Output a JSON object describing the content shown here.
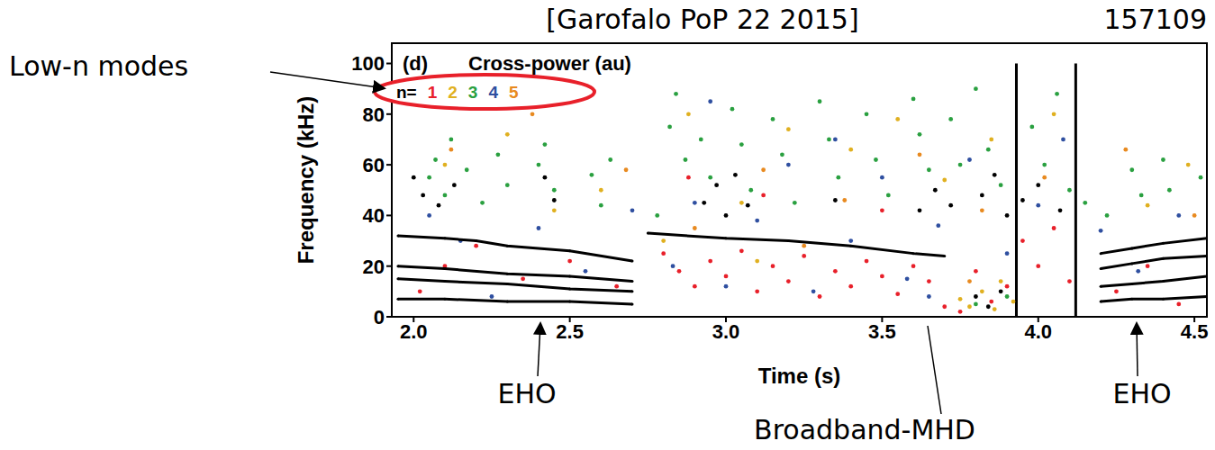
{
  "chart_data": {
    "type": "scatter",
    "title": "Cross-power (au)",
    "panel": "(d)",
    "x_label": "Time (s)",
    "y_label": "Frequency (kHz)",
    "xlim": [
      1.93,
      4.54
    ],
    "xticks": [
      {
        "value": 2,
        "label": "2.0"
      },
      2.5,
      {
        "value": 3,
        "label": "3.0"
      },
      3.5,
      {
        "value": 4,
        "label": "4.0"
      },
      4.5
    ],
    "ylim": [
      0,
      108
    ],
    "yticks": [
      0,
      20,
      40,
      60,
      80,
      100
    ],
    "legend": "top-left",
    "legend_title": "n=",
    "series": [
      {
        "name": "1",
        "color": "#e8202a",
        "values": [
          [
            2.02,
            10
          ],
          [
            2.1,
            20
          ],
          [
            2.2,
            28
          ],
          [
            2.35,
            15
          ],
          [
            2.5,
            22
          ],
          [
            2.65,
            12
          ],
          [
            2.8,
            25
          ],
          [
            2.85,
            18
          ],
          [
            2.9,
            12
          ],
          [
            2.95,
            22
          ],
          [
            3.0,
            16
          ],
          [
            3.05,
            26
          ],
          [
            3.1,
            10
          ],
          [
            3.15,
            20
          ],
          [
            3.2,
            14
          ],
          [
            3.25,
            24
          ],
          [
            3.3,
            8
          ],
          [
            3.35,
            18
          ],
          [
            3.4,
            12
          ],
          [
            3.45,
            22
          ],
          [
            3.5,
            16
          ],
          [
            3.55,
            9
          ],
          [
            3.6,
            20
          ],
          [
            3.65,
            14
          ],
          [
            3.7,
            4
          ],
          [
            3.75,
            2
          ],
          [
            3.8,
            18
          ],
          [
            3.85,
            6
          ],
          [
            3.9,
            12
          ],
          [
            3.95,
            30
          ],
          [
            4.0,
            20
          ],
          [
            4.05,
            35
          ],
          [
            4.1,
            14
          ],
          [
            4.25,
            10
          ],
          [
            4.35,
            20
          ],
          [
            4.45,
            5
          ],
          [
            2.88,
            55
          ],
          [
            3.12,
            48
          ],
          [
            3.5,
            42
          ]
        ]
      },
      {
        "name": "2",
        "color": "#e0b020",
        "values": [
          [
            2.1,
            60
          ],
          [
            2.3,
            72
          ],
          [
            2.45,
            42
          ],
          [
            2.6,
            50
          ],
          [
            2.88,
            80
          ],
          [
            3.05,
            45
          ],
          [
            3.2,
            74
          ],
          [
            3.4,
            66
          ],
          [
            3.55,
            78
          ],
          [
            3.7,
            54
          ],
          [
            3.85,
            70
          ],
          [
            4.05,
            80
          ],
          [
            4.35,
            44
          ],
          [
            4.48,
            60
          ],
          [
            3.78,
            4
          ],
          [
            3.82,
            10
          ],
          [
            3.86,
            3
          ],
          [
            3.88,
            14
          ],
          [
            3.75,
            7
          ],
          [
            3.92,
            6
          ],
          [
            2.8,
            30
          ],
          [
            3.1,
            22
          ]
        ]
      },
      {
        "name": "3",
        "color": "#2aa040",
        "values": [
          [
            2.05,
            55
          ],
          [
            2.07,
            62
          ],
          [
            2.1,
            48
          ],
          [
            2.12,
            70
          ],
          [
            2.17,
            58
          ],
          [
            2.22,
            45
          ],
          [
            2.27,
            64
          ],
          [
            2.3,
            52
          ],
          [
            2.4,
            60
          ],
          [
            2.42,
            68
          ],
          [
            2.45,
            50
          ],
          [
            2.57,
            56
          ],
          [
            2.6,
            44
          ],
          [
            2.63,
            62
          ],
          [
            2.82,
            75
          ],
          [
            2.84,
            88
          ],
          [
            2.87,
            62
          ],
          [
            2.92,
            70
          ],
          [
            2.95,
            55
          ],
          [
            3.02,
            82
          ],
          [
            3.05,
            68
          ],
          [
            3.08,
            50
          ],
          [
            3.15,
            78
          ],
          [
            3.18,
            64
          ],
          [
            3.22,
            45
          ],
          [
            3.3,
            85
          ],
          [
            3.33,
            70
          ],
          [
            3.36,
            55
          ],
          [
            3.45,
            80
          ],
          [
            3.48,
            62
          ],
          [
            3.52,
            48
          ],
          [
            3.6,
            86
          ],
          [
            3.62,
            72
          ],
          [
            3.65,
            58
          ],
          [
            3.72,
            78
          ],
          [
            3.75,
            60
          ],
          [
            3.8,
            90
          ],
          [
            3.84,
            66
          ],
          [
            3.88,
            52
          ],
          [
            3.98,
            75
          ],
          [
            4.02,
            60
          ],
          [
            4.06,
            88
          ],
          [
            4.1,
            50
          ],
          [
            4.15,
            45
          ],
          [
            4.22,
            40
          ],
          [
            4.3,
            58
          ],
          [
            4.33,
            48
          ],
          [
            4.4,
            62
          ],
          [
            4.42,
            50
          ],
          [
            4.52,
            55
          ],
          [
            2.78,
            40
          ],
          [
            3.9,
            8
          ],
          [
            3.8,
            5
          ]
        ]
      },
      {
        "name": "4",
        "color": "#2f4fa0",
        "values": [
          [
            2.05,
            40
          ],
          [
            2.15,
            30
          ],
          [
            2.25,
            8
          ],
          [
            2.4,
            35
          ],
          [
            2.55,
            18
          ],
          [
            2.7,
            42
          ],
          [
            2.83,
            20
          ],
          [
            2.9,
            45
          ],
          [
            3.0,
            12
          ],
          [
            3.1,
            38
          ],
          [
            3.2,
            60
          ],
          [
            3.28,
            10
          ],
          [
            3.4,
            30
          ],
          [
            3.5,
            55
          ],
          [
            3.58,
            15
          ],
          [
            3.68,
            36
          ],
          [
            3.78,
            62
          ],
          [
            3.9,
            25
          ],
          [
            4.0,
            44
          ],
          [
            4.08,
            70
          ],
          [
            4.2,
            34
          ],
          [
            4.32,
            18
          ],
          [
            4.45,
            40
          ],
          [
            3.35,
            70
          ],
          [
            2.95,
            85
          ],
          [
            3.65,
            8
          ]
        ]
      },
      {
        "name": "5",
        "color": "#e88a20",
        "values": [
          [
            2.12,
            66
          ],
          [
            2.38,
            80
          ],
          [
            2.68,
            58
          ],
          [
            2.9,
            35
          ],
          [
            3.12,
            58
          ],
          [
            3.38,
            46
          ],
          [
            3.62,
            64
          ],
          [
            3.82,
            42
          ],
          [
            4.02,
            55
          ],
          [
            4.28,
            66
          ],
          [
            4.5,
            40
          ],
          [
            3.25,
            28
          ],
          [
            3.78,
            14
          ]
        ]
      },
      {
        "color": "#000000",
        "values": [
          [
            2.0,
            55
          ],
          [
            2.03,
            48
          ],
          [
            2.08,
            44
          ],
          [
            2.13,
            52
          ],
          [
            2.42,
            55
          ],
          [
            2.45,
            46
          ],
          [
            2.93,
            45
          ],
          [
            2.97,
            52
          ],
          [
            3.0,
            40
          ],
          [
            3.03,
            56
          ],
          [
            3.07,
            44
          ],
          [
            3.35,
            46
          ],
          [
            3.62,
            42
          ],
          [
            3.67,
            50
          ],
          [
            3.72,
            44
          ],
          [
            3.82,
            48
          ],
          [
            3.86,
            56
          ],
          [
            3.9,
            40
          ],
          [
            3.95,
            46
          ],
          [
            4.0,
            52
          ],
          [
            3.8,
            8
          ],
          [
            3.84,
            4
          ],
          [
            3.88,
            10
          ],
          [
            4.07,
            42
          ]
        ]
      },
      {
        "type": "line",
        "color": "#000000",
        "values": [
          [
            1.95,
            32
          ],
          [
            2.1,
            31
          ],
          [
            2.2,
            30
          ],
          [
            2.3,
            28
          ],
          [
            2.5,
            26
          ],
          [
            2.7,
            22
          ]
        ]
      },
      {
        "type": "line",
        "color": "#000000",
        "values": [
          [
            1.95,
            20
          ],
          [
            2.1,
            19
          ],
          [
            2.3,
            17
          ],
          [
            2.5,
            16
          ],
          [
            2.7,
            14
          ]
        ]
      },
      {
        "type": "line",
        "color": "#000000",
        "values": [
          [
            1.95,
            15
          ],
          [
            2.1,
            14
          ],
          [
            2.3,
            13
          ],
          [
            2.5,
            11
          ],
          [
            2.7,
            10
          ]
        ]
      },
      {
        "type": "line",
        "color": "#000000",
        "values": [
          [
            1.95,
            7
          ],
          [
            2.1,
            7
          ],
          [
            2.3,
            6
          ],
          [
            2.5,
            6
          ],
          [
            2.7,
            5
          ]
        ]
      },
      {
        "type": "line",
        "color": "#000000",
        "values": [
          [
            2.75,
            33
          ],
          [
            3.0,
            31
          ],
          [
            3.2,
            30
          ],
          [
            3.4,
            28
          ],
          [
            3.6,
            25
          ],
          [
            3.7,
            24
          ]
        ]
      },
      {
        "type": "line",
        "color": "#000000",
        "values": [
          [
            4.2,
            25
          ],
          [
            4.3,
            27
          ],
          [
            4.4,
            29
          ],
          [
            4.54,
            31
          ]
        ]
      },
      {
        "type": "line",
        "color": "#000000",
        "values": [
          [
            4.2,
            19
          ],
          [
            4.3,
            21
          ],
          [
            4.4,
            23
          ],
          [
            4.54,
            24
          ]
        ]
      },
      {
        "type": "line",
        "color": "#000000",
        "values": [
          [
            4.2,
            12
          ],
          [
            4.3,
            13
          ],
          [
            4.4,
            14
          ],
          [
            4.54,
            16
          ]
        ]
      },
      {
        "type": "line",
        "color": "#000000",
        "values": [
          [
            4.2,
            6
          ],
          [
            4.3,
            7
          ],
          [
            4.4,
            7
          ],
          [
            4.54,
            8
          ]
        ]
      }
    ],
    "vertical_lines": [
      {
        "x": 3.93,
        "y": [
          0,
          100
        ]
      },
      {
        "x": 4.12,
        "y": [
          0,
          100
        ]
      }
    ],
    "annotations": [
      {
        "text": "[Garofalo PoP 22 2015]"
      },
      {
        "text": "157109"
      },
      {
        "text": "Low-n modes"
      },
      {
        "text": "EHO"
      },
      {
        "text": "EHO"
      },
      {
        "text": "Broadband-MHD"
      }
    ]
  }
}
